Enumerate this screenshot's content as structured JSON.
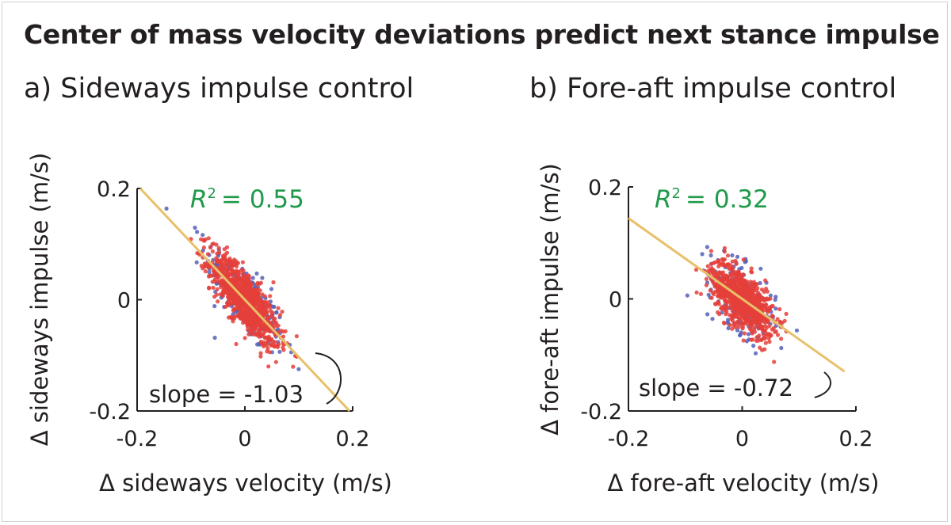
{
  "figure": {
    "title": "Center of mass velocity deviations predict next stance impulse"
  },
  "chart_data": [
    {
      "type": "scatter",
      "panel_title": "a) Sideways impulse control",
      "xlabel": "Δ sideways velocity (m/s)",
      "ylabel": "Δ sideways impulse (m/s)",
      "xlim": [
        -0.2,
        0.2
      ],
      "ylim": [
        -0.2,
        0.2
      ],
      "xticks": [
        "-0.2",
        "0",
        "0.2"
      ],
      "yticks": [
        "0.2",
        "0",
        "-0.2"
      ],
      "r2_label": "R",
      "r2_value": "= 0.55",
      "slope_label": "slope = -1.03",
      "fit": {
        "slope": -1.03,
        "intercept": 0.0
      },
      "series": [
        {
          "name": "blue",
          "color": "#5560b8",
          "n": 260,
          "x_sd": 0.036,
          "resid_sd": 0.03
        },
        {
          "name": "red",
          "color": "#e5403a",
          "n": 900,
          "x_sd": 0.032,
          "resid_sd": 0.025
        }
      ],
      "line_color": "#e8c06a"
    },
    {
      "type": "scatter",
      "panel_title": "b) Fore-aft impulse control",
      "xlabel": "Δ fore-aft velocity (m/s)",
      "ylabel": "Δ fore-aft impulse (m/s)",
      "xlim": [
        -0.2,
        0.2
      ],
      "ylim": [
        -0.2,
        0.2
      ],
      "xticks": [
        "-0.2",
        "0",
        "0.2"
      ],
      "yticks": [
        "0.2",
        "0",
        "-0.2"
      ],
      "r2_label": "R",
      "r2_value": "= 0.32",
      "slope_label": "slope = -0.72",
      "fit": {
        "slope": -0.72,
        "intercept": 0.0
      },
      "series": [
        {
          "name": "blue",
          "color": "#5560b8",
          "n": 220,
          "x_sd": 0.03,
          "resid_sd": 0.03
        },
        {
          "name": "red",
          "color": "#e5403a",
          "n": 850,
          "x_sd": 0.027,
          "resid_sd": 0.025
        }
      ],
      "line_color": "#e8c06a"
    }
  ]
}
